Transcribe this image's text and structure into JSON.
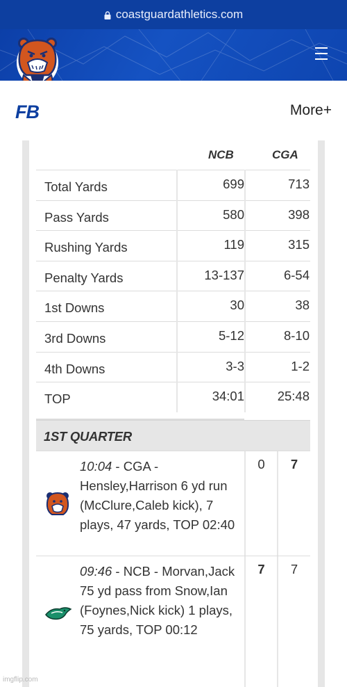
{
  "browser": {
    "url": "coastguardathletics.com"
  },
  "nav": {
    "sport": "FB",
    "more_label": "More+"
  },
  "stats": {
    "team1": "NCB",
    "team2": "CGA",
    "rows": [
      {
        "label": "Total Yards",
        "v1": "699",
        "v2": "713"
      },
      {
        "label": "Pass Yards",
        "v1": "580",
        "v2": "398"
      },
      {
        "label": "Rushing Yards",
        "v1": "119",
        "v2": "315"
      },
      {
        "label": "Penalty Yards",
        "v1": "13-137",
        "v2": "6-54"
      },
      {
        "label": "1st Downs",
        "v1": "30",
        "v2": "38"
      },
      {
        "label": "3rd Downs",
        "v1": "5-12",
        "v2": "8-10"
      },
      {
        "label": "4th Downs",
        "v1": "3-3",
        "v2": "1-2"
      },
      {
        "label": "TOP",
        "v1": "34:01",
        "v2": "25:48"
      }
    ]
  },
  "quarter": {
    "title": "1ST QUARTER",
    "plays": [
      {
        "time": "10:04",
        "text": " - CGA - Hensley,Harrison 6 yd run (McClure,Caleb kick), 7 plays, 47 yards, TOP 02:40",
        "s1": "0",
        "s2": "7",
        "logo": "cga-bear-logo"
      },
      {
        "time": "09:46",
        "text": " - NCB - Morvan,Jack 75 yd pass from Snow,Ian (Foynes,Nick kick) 1 plays, 75 yards, TOP 00:12",
        "s1": "7",
        "s2": "7",
        "logo": "ncb-bird-logo"
      }
    ]
  },
  "watermark": "imgflip.com",
  "colors": {
    "brand_blue": "#0d3fa0",
    "header_blue": "#1552c2",
    "gray": "#e6e6e6",
    "bear_orange": "#d2561f"
  }
}
